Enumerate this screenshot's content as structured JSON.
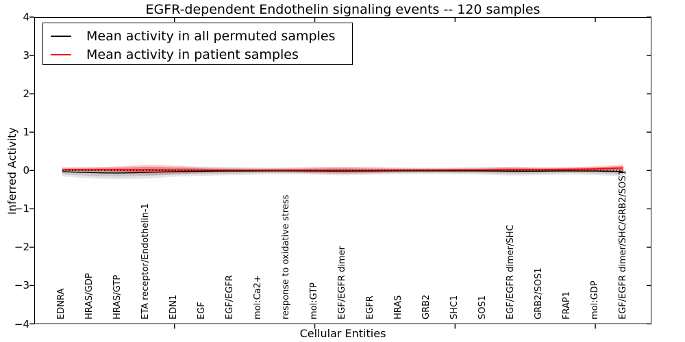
{
  "title": "EGFR-dependent Endothelin signaling events -- 120 samples",
  "axes": {
    "x_label": "Cellular Entities",
    "y_label": "Inferred Activity",
    "y_tick_labels": [
      "4",
      "3",
      "2",
      "1",
      "0",
      "−1",
      "−2",
      "−3",
      "−4"
    ],
    "y_tick_values": [
      4,
      3,
      2,
      1,
      0,
      -1,
      -2,
      -3,
      -4
    ]
  },
  "legend": {
    "items": [
      {
        "label": "Mean activity in all permuted samples",
        "color": "#000000"
      },
      {
        "label": "Mean activity in patient samples",
        "color": "#ff0000"
      }
    ]
  },
  "colors": {
    "background": "#ffffff",
    "spine": "#000000",
    "permuted_line": "#000000",
    "patient_line": "#ff0000",
    "zero_line": "#000000"
  },
  "chart_data": {
    "type": "line",
    "title": "EGFR-dependent Endothelin signaling events -- 120 samples",
    "xlabel": "Cellular Entities",
    "ylabel": "Inferred Activity",
    "ylim": [
      -4,
      4
    ],
    "grid": false,
    "legend_position": "upper left",
    "categories": [
      "EDNRA",
      "HRAS/GDP",
      "HRAS/GTP",
      "ETA receptor/Endothelin-1",
      "EDN1",
      "EGF",
      "EGF/EGFR",
      "mol:Ca2+",
      "response to oxidative stress",
      "mol:GTP",
      "EGF/EGFR dimer",
      "EGFR",
      "HRAS",
      "GRB2",
      "SHC1",
      "SOS1",
      "EGF/EGFR dimer/SHC",
      "GRB2/SOS1",
      "FRAP1",
      "mol:GDP",
      "EGF/EGFR dimer/SHC/GRB2/SOS1"
    ],
    "unlabeled_x_ticks": [
      5,
      10,
      15,
      20
    ],
    "reference_line": {
      "y": 0,
      "style": "dotted",
      "color": "#000000"
    },
    "series": [
      {
        "name": "Mean activity in all permuted samples",
        "color": "#000000",
        "values": [
          -0.03,
          -0.055,
          -0.065,
          -0.05,
          -0.03,
          -0.02,
          -0.015,
          -0.012,
          -0.01,
          -0.012,
          -0.015,
          -0.012,
          -0.01,
          -0.01,
          -0.01,
          -0.012,
          -0.018,
          -0.018,
          -0.012,
          -0.015,
          -0.03
        ],
        "band_halfwidth": [
          0.12,
          0.15,
          0.16,
          0.16,
          0.13,
          0.12,
          0.11,
          0.095,
          0.09,
          0.1,
          0.11,
          0.1,
          0.09,
          0.085,
          0.09,
          0.1,
          0.115,
          0.105,
          0.095,
          0.105,
          0.125
        ],
        "band_colors": [
          "rgba(0,0,0,0.10)",
          "rgba(0,0,0,0.13)"
        ]
      },
      {
        "name": "Mean activity in patient samples",
        "color": "#ff0000",
        "values": [
          0.02,
          0.02,
          0.02,
          0.018,
          0.015,
          0.01,
          0.008,
          0.005,
          0.005,
          0.005,
          0.005,
          0.005,
          0.008,
          0.01,
          0.012,
          0.015,
          0.02,
          0.022,
          0.03,
          0.042,
          0.065
        ],
        "band_halfwidth": [
          0.05,
          0.06,
          0.09,
          0.135,
          0.115,
          0.075,
          0.055,
          0.05,
          0.06,
          0.078,
          0.085,
          0.075,
          0.058,
          0.05,
          0.05,
          0.058,
          0.072,
          0.055,
          0.055,
          0.07,
          0.095
        ],
        "band_colors": [
          "rgba(255,0,0,0.17)",
          "rgba(255,0,0,0.30)"
        ]
      }
    ]
  }
}
